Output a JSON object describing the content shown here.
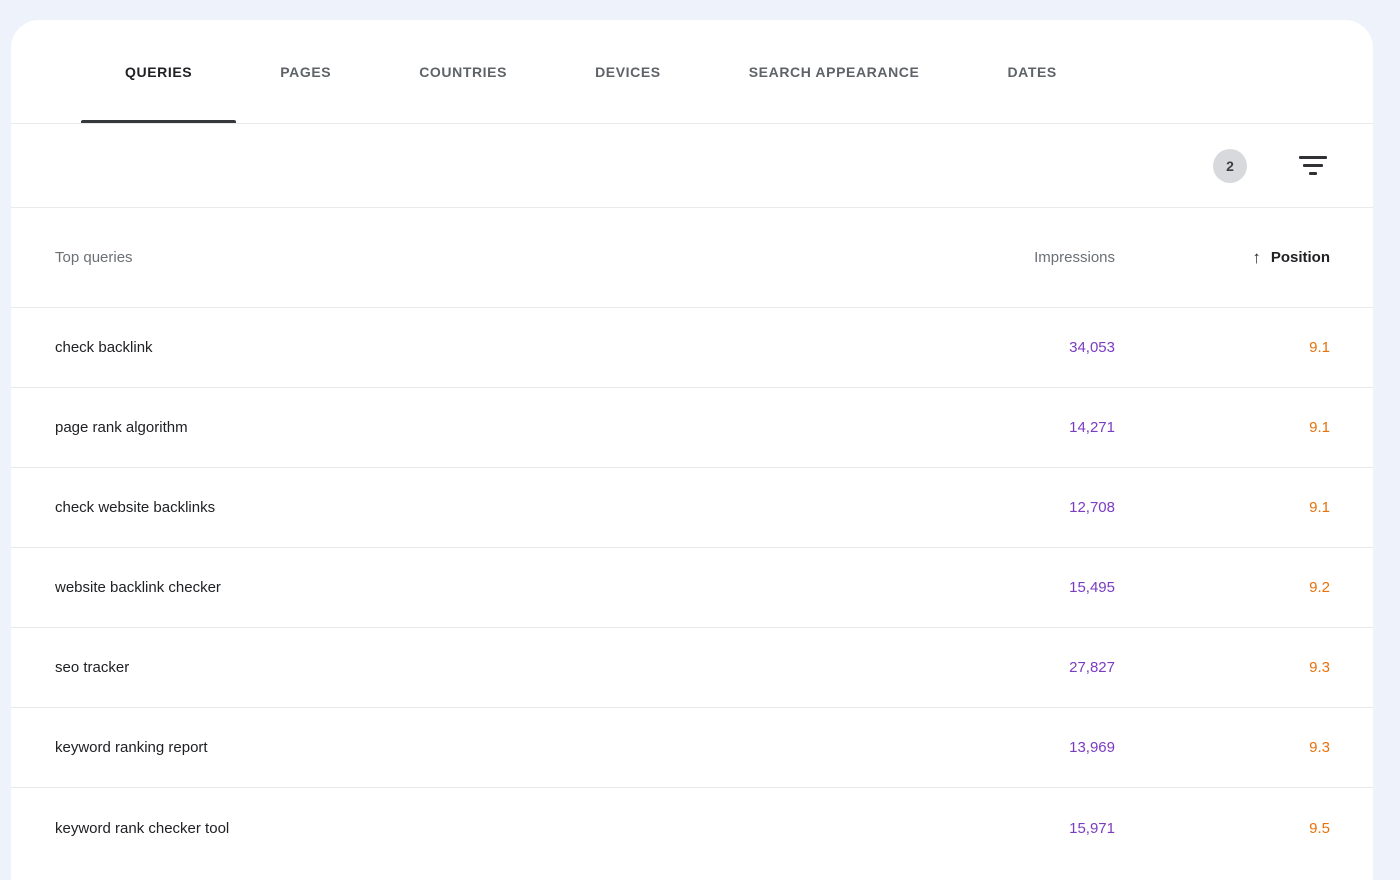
{
  "page": {
    "background_color": "#eef2fb",
    "card_color": "#ffffff"
  },
  "tabs": [
    {
      "label": "QUERIES",
      "active": true
    },
    {
      "label": "PAGES",
      "active": false
    },
    {
      "label": "COUNTRIES",
      "active": false
    },
    {
      "label": "DEVICES",
      "active": false
    },
    {
      "label": "SEARCH APPEARANCE",
      "active": false
    },
    {
      "label": "DATES",
      "active": false
    }
  ],
  "toolbar": {
    "filter_count": "2",
    "filter_icon": "filter-list-icon"
  },
  "table": {
    "columns": {
      "query": "Top queries",
      "impressions": "Impressions",
      "position": "Position",
      "sort_arrow": "↑",
      "sort_column": "Position",
      "sort_direction": "ascending"
    },
    "colors": {
      "impressions": "#7a3cc1",
      "position": "#e8710a",
      "query": "#202124"
    },
    "rows": [
      {
        "query": "check backlink",
        "impressions": "34,053",
        "position": "9.1"
      },
      {
        "query": "page rank algorithm",
        "impressions": "14,271",
        "position": "9.1"
      },
      {
        "query": "check website backlinks",
        "impressions": "12,708",
        "position": "9.1"
      },
      {
        "query": "website backlink checker",
        "impressions": "15,495",
        "position": "9.2"
      },
      {
        "query": "seo tracker",
        "impressions": "27,827",
        "position": "9.3"
      },
      {
        "query": "keyword ranking report",
        "impressions": "13,969",
        "position": "9.3"
      },
      {
        "query": "keyword rank checker tool",
        "impressions": "15,971",
        "position": "9.5"
      }
    ]
  }
}
